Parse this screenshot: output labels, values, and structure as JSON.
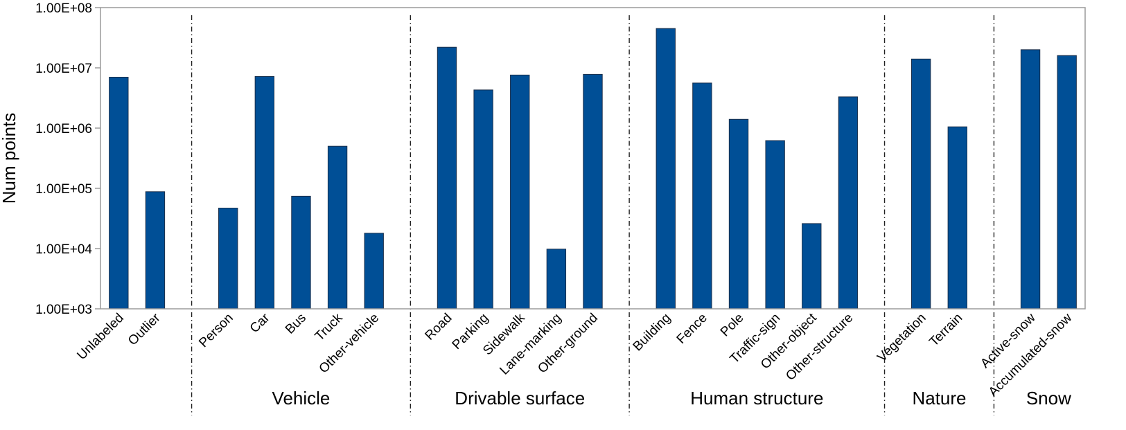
{
  "chart_data": {
    "type": "bar",
    "ylabel": "Num points",
    "yscale": "log",
    "ylim": [
      1000,
      100000000
    ],
    "yticks": [
      "1.00E+03",
      "1.00E+04",
      "1.00E+05",
      "1.00E+06",
      "1.00E+07",
      "1.00E+08"
    ],
    "grid": false,
    "bar_color": "#004f96",
    "slots": 27,
    "categories": [
      {
        "label": "Unlabeled",
        "value": 7000000,
        "slot": 0
      },
      {
        "label": "Outlier",
        "value": 88000,
        "slot": 1
      },
      {
        "label": "Person",
        "value": 47000,
        "slot": 3
      },
      {
        "label": "Car",
        "value": 7200000,
        "slot": 4
      },
      {
        "label": "Bus",
        "value": 74000,
        "slot": 5
      },
      {
        "label": "Truck",
        "value": 500000,
        "slot": 6
      },
      {
        "label": "Other-vehicle",
        "value": 18000,
        "slot": 7
      },
      {
        "label": "Road",
        "value": 22000000,
        "slot": 9
      },
      {
        "label": "Parking",
        "value": 4300000,
        "slot": 10
      },
      {
        "label": "Sidewalk",
        "value": 7600000,
        "slot": 11
      },
      {
        "label": "Lane-marking",
        "value": 9800,
        "slot": 12
      },
      {
        "label": "Other-ground",
        "value": 7800000,
        "slot": 13
      },
      {
        "label": "Building",
        "value": 45000000,
        "slot": 15
      },
      {
        "label": "Fence",
        "value": 5600000,
        "slot": 16
      },
      {
        "label": "Pole",
        "value": 1400000,
        "slot": 17
      },
      {
        "label": "Traffic-sign",
        "value": 620000,
        "slot": 18
      },
      {
        "label": "Other-object",
        "value": 26000,
        "slot": 19
      },
      {
        "label": "Other-structure",
        "value": 3300000,
        "slot": 20
      },
      {
        "label": "Vegetation",
        "value": 14000000,
        "slot": 22
      },
      {
        "label": "Terrain",
        "value": 1050000,
        "slot": 23
      },
      {
        "label": "Active-snow",
        "value": 20000000,
        "slot": 25
      },
      {
        "label": "Accumulated-snow",
        "value": 16000000,
        "slot": 26
      }
    ],
    "separators": [
      2,
      8,
      14,
      21,
      24
    ],
    "groups": [
      {
        "label": "Vehicle",
        "start": 3,
        "end": 7
      },
      {
        "label": "Drivable surface",
        "start": 9,
        "end": 13
      },
      {
        "label": "Human structure",
        "start": 15,
        "end": 20
      },
      {
        "label": "Nature",
        "start": 22,
        "end": 23
      },
      {
        "label": "Snow",
        "start": 25,
        "end": 26
      }
    ]
  }
}
